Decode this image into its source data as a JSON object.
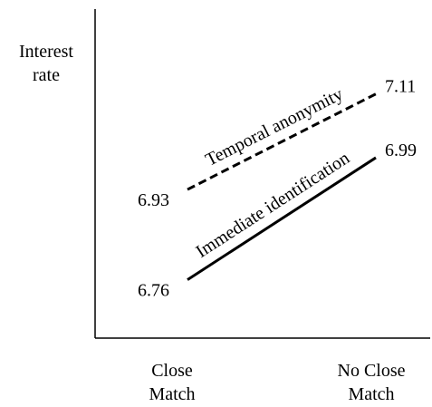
{
  "chart_data": {
    "type": "line",
    "y_label": "Interest rate",
    "categories": [
      "Close Match",
      "No Close Match"
    ],
    "series": [
      {
        "name": "Temporal anonymity",
        "color": "#000000",
        "style": "dashed",
        "values": [
          6.93,
          7.11
        ]
      },
      {
        "name": "Immediate identification",
        "color": "#000000",
        "style": "solid",
        "values": [
          6.76,
          6.99
        ]
      }
    ],
    "ylim": [
      6.65,
      7.27
    ]
  }
}
